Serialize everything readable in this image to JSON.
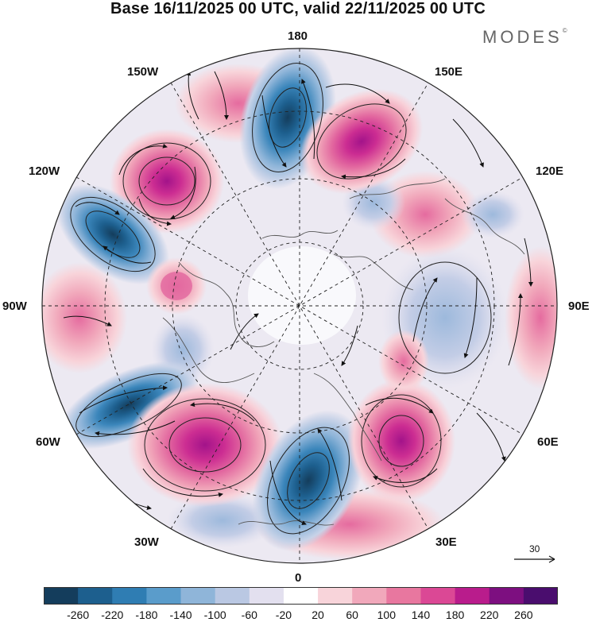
{
  "header": {
    "title": "Base 16/11/2025 00 UTC, valid 22/11/2025 00 UTC"
  },
  "brand": {
    "logo_text": "MODES",
    "mark": "©"
  },
  "map": {
    "projection": "north-polar-stereographic",
    "longitude_labels": {
      "top": "180",
      "bottom": "0",
      "left": "90W",
      "right": "90E",
      "upper_left_1": "150W",
      "upper_left_2": "120W",
      "lower_left_1": "60W",
      "lower_left_2": "30W",
      "upper_right_1": "150E",
      "upper_right_2": "120E",
      "lower_right_1": "60E",
      "lower_right_2": "30E"
    },
    "anomaly_centers": [
      {
        "sign": "positive",
        "lon_sector": "150W",
        "intensity": 220
      },
      {
        "sign": "negative",
        "lon_sector": "120W",
        "intensity": -220
      },
      {
        "sign": "negative",
        "lon_sector": "180",
        "intensity": -220
      },
      {
        "sign": "positive",
        "lon_sector": "150E",
        "intensity": 200
      },
      {
        "sign": "positive",
        "lon_sector": "100W",
        "intensity": 140
      },
      {
        "sign": "negative",
        "lon_sector": "60W",
        "intensity": -200
      },
      {
        "sign": "positive",
        "lon_sector": "40W",
        "intensity": 240
      },
      {
        "sign": "negative",
        "lon_sector": "0",
        "intensity": -260
      },
      {
        "sign": "positive",
        "lon_sector": "45E",
        "intensity": 200
      },
      {
        "sign": "negative",
        "lon_sector": "90E",
        "intensity": -100
      }
    ]
  },
  "reference_vector": {
    "label": "30"
  },
  "colorbar": {
    "ticks": [
      "-260",
      "-220",
      "-180",
      "-140",
      "-100",
      "-60",
      "-20",
      "20",
      "60",
      "100",
      "140",
      "180",
      "220",
      "260"
    ],
    "colors": [
      "#143d5c",
      "#1d5f8e",
      "#2f7db3",
      "#5a9ccb",
      "#8fb5d9",
      "#bac8e3",
      "#e3e0ef",
      "#ffffff",
      "#f8d4da",
      "#f1a8bb",
      "#e8779f",
      "#db4895",
      "#b91c8c",
      "#7d0f80",
      "#4a0d6e"
    ]
  }
}
